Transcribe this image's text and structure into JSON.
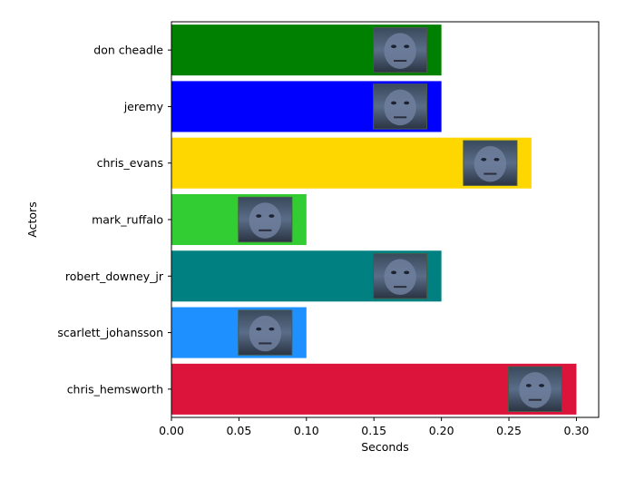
{
  "chart_data": {
    "type": "bar",
    "orientation": "horizontal",
    "xlabel": "Seconds",
    "ylabel": "Actors",
    "xlim": [
      0,
      0.3165
    ],
    "xticks": [
      0.0,
      0.05,
      0.1,
      0.15,
      0.2,
      0.25,
      0.3
    ],
    "xtick_labels": [
      "0.00",
      "0.05",
      "0.10",
      "0.15",
      "0.20",
      "0.25",
      "0.30"
    ],
    "grid": false,
    "legend": "none",
    "categories": [
      "don cheadle",
      "jeremy",
      "chris_evans",
      "mark_ruffalo",
      "robert_downey_jr",
      "scarlett_johansson",
      "chris_hemsworth"
    ],
    "values": [
      0.2,
      0.2,
      0.2667,
      0.1,
      0.2,
      0.1,
      0.3
    ],
    "colors": [
      "#008000",
      "#0000ff",
      "#ffd700",
      "#32cd32",
      "#008080",
      "#1e90ff",
      "#dc143c"
    ],
    "bar_images": [
      "face-thumbnail",
      "face-thumbnail",
      "face-thumbnail",
      "face-thumbnail",
      "face-thumbnail",
      "face-thumbnail",
      "face-thumbnail"
    ]
  }
}
